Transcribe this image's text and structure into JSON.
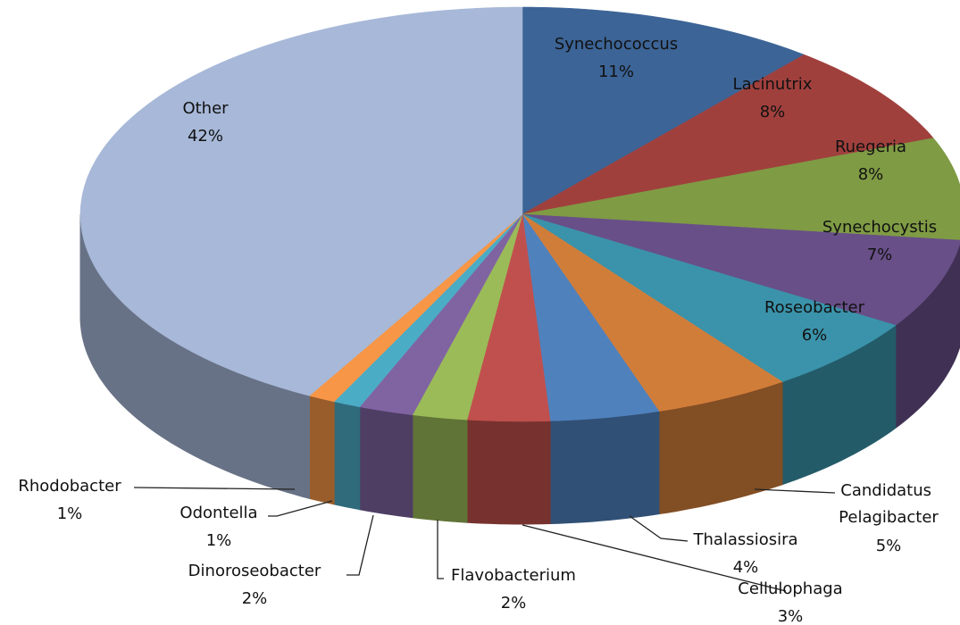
{
  "chart_data": {
    "type": "pie",
    "categories": [
      "Synechococcus",
      "Lacinutrix",
      "Ruegeria",
      "Synechocystis",
      "Roseobacter",
      "Candidatus Pelagibacter",
      "Thalassiosira",
      "Cellulophaga",
      "Flavobacterium",
      "Dinoroseobacter",
      "Odontella",
      "Rhodobacter",
      "Other"
    ],
    "values": [
      11,
      8,
      8,
      7,
      6,
      5,
      4,
      3,
      2,
      2,
      1,
      1,
      42
    ],
    "value_labels": [
      "11%",
      "8%",
      "8%",
      "7%",
      "6%",
      "5%",
      "4%",
      "3%",
      "2%",
      "2%",
      "1%",
      "1%",
      "42%"
    ],
    "colors": [
      "#3c6496",
      "#a0403d",
      "#7f9b44",
      "#684f88",
      "#3a93aa",
      "#d17d3a",
      "#4f81bd",
      "#c0504d",
      "#9bbb59",
      "#8064a2",
      "#4bacc6",
      "#f79646",
      "#a7b8d8"
    ]
  }
}
